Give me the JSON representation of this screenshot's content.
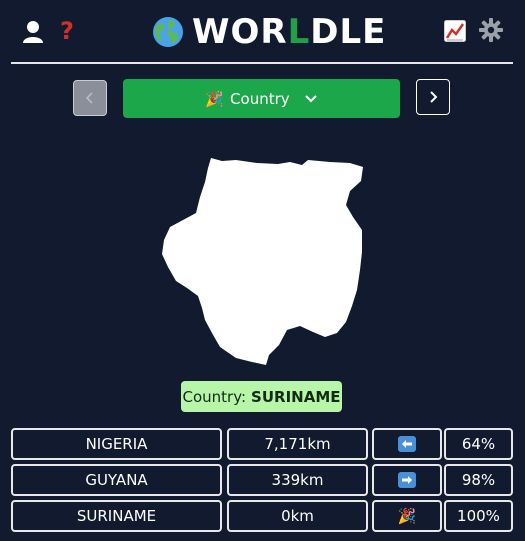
{
  "header": {
    "title_prefix": "WOR",
    "title_highlight": "L",
    "title_suffix": "DLE",
    "help_symbol": "?",
    "icons": [
      "user-icon",
      "help-icon",
      "globe-icon",
      "stats-icon",
      "gear-icon"
    ]
  },
  "mode_select": {
    "label": "Country",
    "emoji": "🎉"
  },
  "answer": {
    "label": "Country:",
    "value": "SURINAME"
  },
  "guesses": [
    {
      "country": "NIGERIA",
      "distance": "7,171km",
      "direction": "left-arrow",
      "proximity": "64%"
    },
    {
      "country": "GUYANA",
      "distance": "339km",
      "direction": "right-arrow",
      "proximity": "98%"
    },
    {
      "country": "SURINAME",
      "distance": "0km",
      "direction": "party",
      "direction_emoji": "🎉",
      "proximity": "100%"
    }
  ],
  "colors": {
    "background": "#111a2e",
    "accent_green": "#1ca84a",
    "answer_bg": "#b7f5a8",
    "help_red": "#d0302b",
    "arrow_blue": "#4a90d9"
  }
}
